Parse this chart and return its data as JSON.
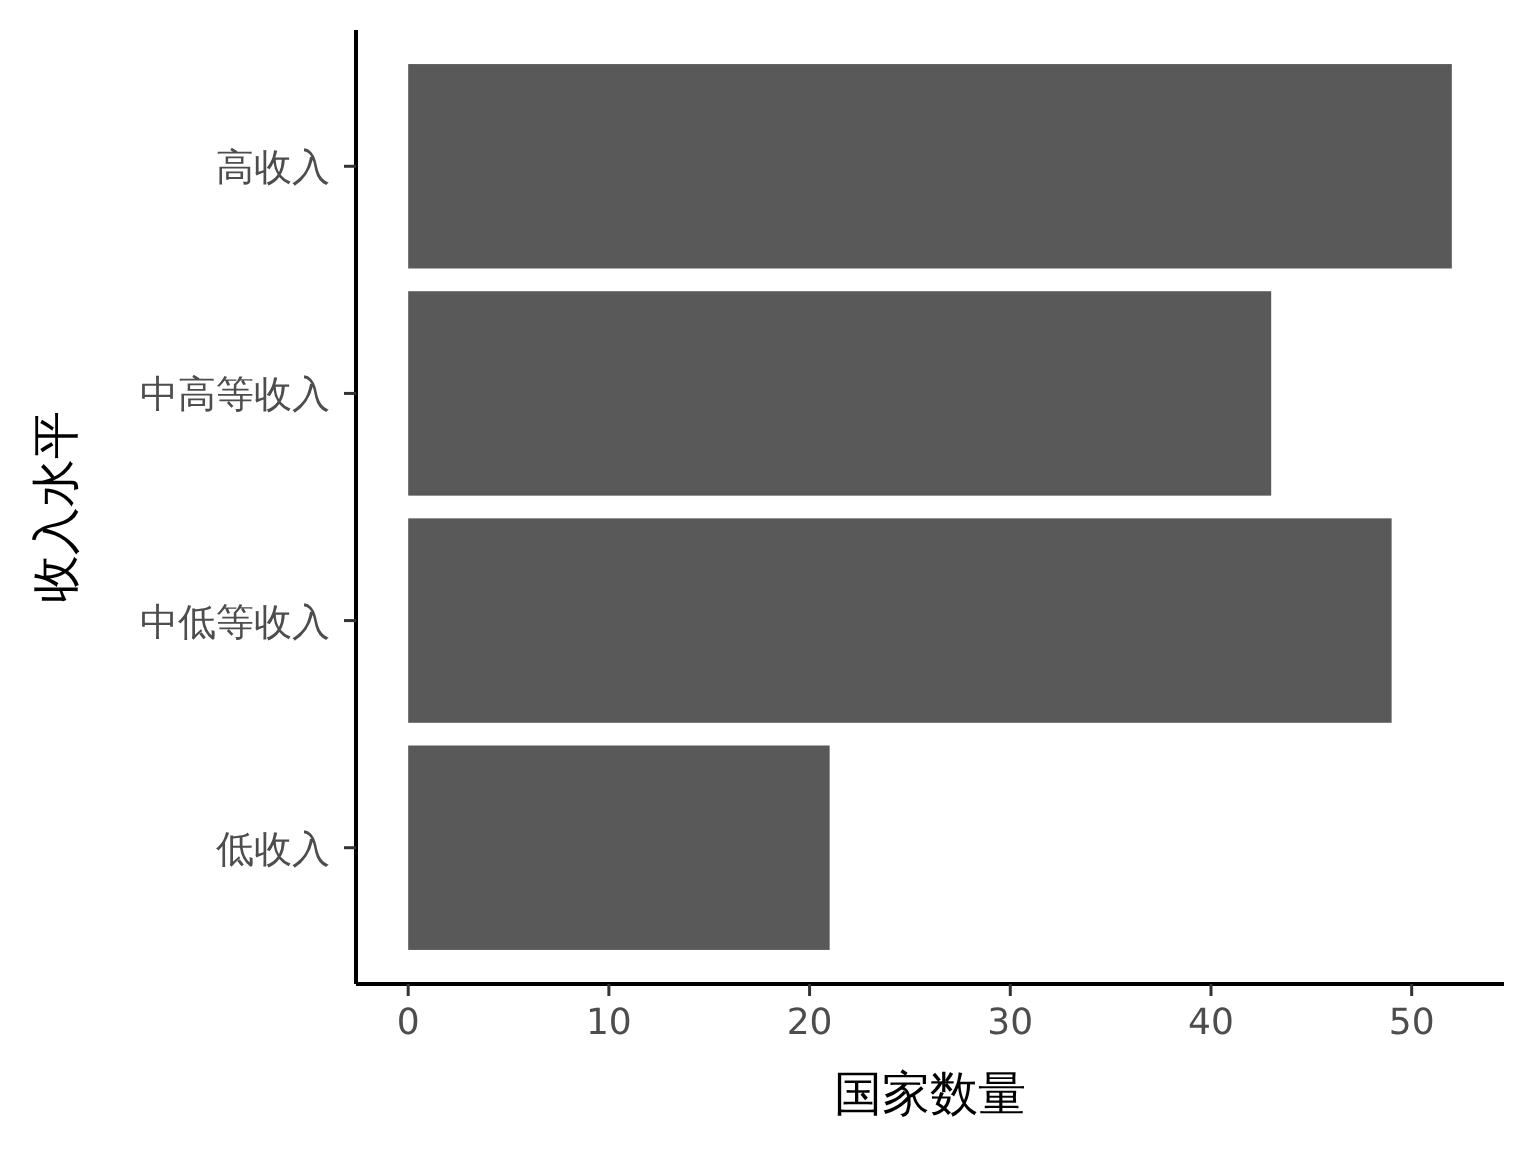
{
  "chart_data": {
    "type": "bar",
    "orientation": "horizontal",
    "xlabel": "国家数量",
    "ylabel": "收入水平",
    "categories": [
      "高收入",
      "中高等收入",
      "中低等收入",
      "低收入"
    ],
    "values": [
      52,
      43,
      49,
      21
    ],
    "color": "#595959",
    "xlim": [
      -2.6,
      54.6
    ],
    "xticks": [
      0,
      10,
      20,
      30,
      40,
      50
    ],
    "grid": false
  }
}
